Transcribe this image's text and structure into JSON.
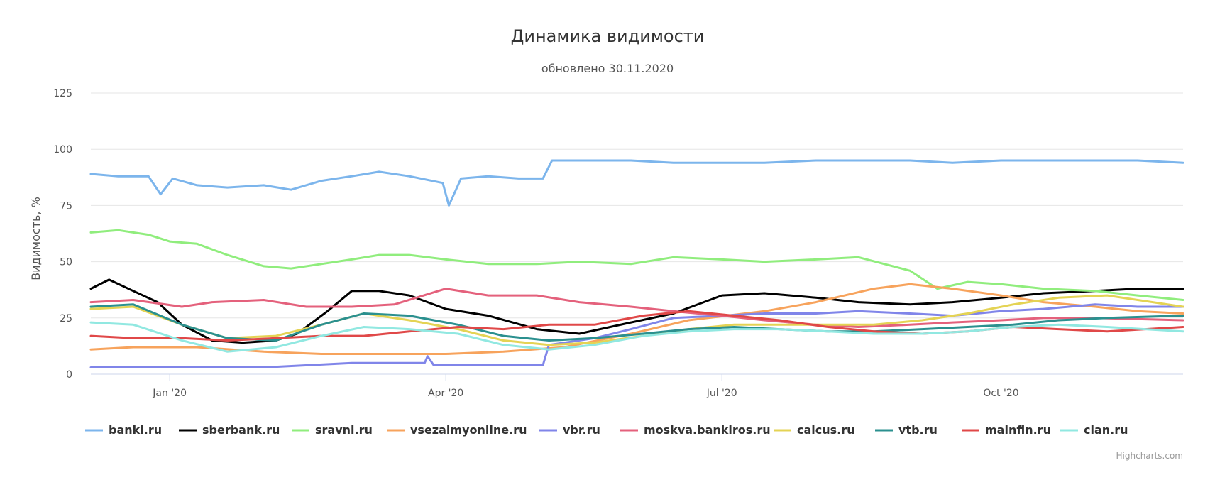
{
  "chart_data": {
    "type": "line",
    "title": "Динамика видимости",
    "subtitle": "обновлено 30.11.2020",
    "ylabel": "Видимость, %",
    "xlabel": "",
    "ylim": [
      0,
      125
    ],
    "y_ticks": [
      0,
      25,
      50,
      75,
      100,
      125
    ],
    "x_range": [
      "2019-12-06",
      "2020-11-30"
    ],
    "x_ticks": [
      {
        "date": "2020-01-01",
        "label": "Jan '20"
      },
      {
        "date": "2020-04-01",
        "label": "Apr '20"
      },
      {
        "date": "2020-07-01",
        "label": "Jul '20"
      },
      {
        "date": "2020-10-01",
        "label": "Oct '20"
      }
    ],
    "legend_position": "bottom",
    "credits": "Highcharts.com",
    "grid": true,
    "series": [
      {
        "name": "banki.ru",
        "color": "#7cb5ec",
        "points": [
          [
            "2019-12-06",
            89
          ],
          [
            "2019-12-15",
            88
          ],
          [
            "2019-12-25",
            88
          ],
          [
            "2019-12-29",
            80
          ],
          [
            "2020-01-02",
            87
          ],
          [
            "2020-01-10",
            84
          ],
          [
            "2020-01-20",
            83
          ],
          [
            "2020-02-01",
            84
          ],
          [
            "2020-02-10",
            82
          ],
          [
            "2020-02-20",
            86
          ],
          [
            "2020-03-01",
            88
          ],
          [
            "2020-03-10",
            90
          ],
          [
            "2020-03-20",
            88
          ],
          [
            "2020-03-31",
            85
          ],
          [
            "2020-04-02",
            75
          ],
          [
            "2020-04-06",
            87
          ],
          [
            "2020-04-15",
            88
          ],
          [
            "2020-04-25",
            87
          ],
          [
            "2020-05-03",
            87
          ],
          [
            "2020-05-06",
            95
          ],
          [
            "2020-05-20",
            95
          ],
          [
            "2020-06-01",
            95
          ],
          [
            "2020-06-15",
            94
          ],
          [
            "2020-07-01",
            94
          ],
          [
            "2020-07-15",
            94
          ],
          [
            "2020-08-01",
            95
          ],
          [
            "2020-08-15",
            95
          ],
          [
            "2020-09-01",
            95
          ],
          [
            "2020-09-15",
            94
          ],
          [
            "2020-10-01",
            95
          ],
          [
            "2020-10-15",
            95
          ],
          [
            "2020-11-01",
            95
          ],
          [
            "2020-11-15",
            95
          ],
          [
            "2020-11-30",
            94
          ]
        ]
      },
      {
        "name": "sberbank.ru",
        "color": "#000000",
        "points": [
          [
            "2019-12-06",
            38
          ],
          [
            "2019-12-12",
            42
          ],
          [
            "2019-12-20",
            37
          ],
          [
            "2019-12-28",
            32
          ],
          [
            "2020-01-05",
            22
          ],
          [
            "2020-01-15",
            15
          ],
          [
            "2020-01-25",
            14
          ],
          [
            "2020-02-05",
            15
          ],
          [
            "2020-02-12",
            18
          ],
          [
            "2020-02-22",
            28
          ],
          [
            "2020-03-01",
            37
          ],
          [
            "2020-03-10",
            37
          ],
          [
            "2020-03-20",
            35
          ],
          [
            "2020-04-01",
            29
          ],
          [
            "2020-04-15",
            26
          ],
          [
            "2020-05-01",
            20
          ],
          [
            "2020-05-15",
            18
          ],
          [
            "2020-06-01",
            23
          ],
          [
            "2020-06-15",
            27
          ],
          [
            "2020-07-01",
            35
          ],
          [
            "2020-07-15",
            36
          ],
          [
            "2020-08-01",
            34
          ],
          [
            "2020-08-15",
            32
          ],
          [
            "2020-09-01",
            31
          ],
          [
            "2020-09-15",
            32
          ],
          [
            "2020-10-01",
            34
          ],
          [
            "2020-10-15",
            36
          ],
          [
            "2020-11-01",
            37
          ],
          [
            "2020-11-15",
            38
          ],
          [
            "2020-11-30",
            38
          ]
        ]
      },
      {
        "name": "sravni.ru",
        "color": "#90ed7d",
        "points": [
          [
            "2019-12-06",
            63
          ],
          [
            "2019-12-15",
            64
          ],
          [
            "2019-12-25",
            62
          ],
          [
            "2020-01-01",
            59
          ],
          [
            "2020-01-10",
            58
          ],
          [
            "2020-01-20",
            53
          ],
          [
            "2020-02-01",
            48
          ],
          [
            "2020-02-10",
            47
          ],
          [
            "2020-02-20",
            49
          ],
          [
            "2020-03-01",
            51
          ],
          [
            "2020-03-10",
            53
          ],
          [
            "2020-03-20",
            53
          ],
          [
            "2020-04-01",
            51
          ],
          [
            "2020-04-15",
            49
          ],
          [
            "2020-05-01",
            49
          ],
          [
            "2020-05-15",
            50
          ],
          [
            "2020-06-01",
            49
          ],
          [
            "2020-06-15",
            52
          ],
          [
            "2020-07-01",
            51
          ],
          [
            "2020-07-15",
            50
          ],
          [
            "2020-08-01",
            51
          ],
          [
            "2020-08-15",
            52
          ],
          [
            "2020-09-01",
            46
          ],
          [
            "2020-09-10",
            38
          ],
          [
            "2020-09-20",
            41
          ],
          [
            "2020-10-01",
            40
          ],
          [
            "2020-10-15",
            38
          ],
          [
            "2020-11-01",
            37
          ],
          [
            "2020-11-15",
            35
          ],
          [
            "2020-11-30",
            33
          ]
        ]
      },
      {
        "name": "vsezaimyonline.ru",
        "color": "#f7a35c",
        "points": [
          [
            "2019-12-06",
            11
          ],
          [
            "2019-12-20",
            12
          ],
          [
            "2020-01-10",
            12
          ],
          [
            "2020-02-01",
            10
          ],
          [
            "2020-02-20",
            9
          ],
          [
            "2020-03-15",
            9
          ],
          [
            "2020-04-01",
            9
          ],
          [
            "2020-04-20",
            10
          ],
          [
            "2020-05-10",
            12
          ],
          [
            "2020-06-01",
            18
          ],
          [
            "2020-06-20",
            24
          ],
          [
            "2020-07-15",
            28
          ],
          [
            "2020-08-01",
            32
          ],
          [
            "2020-08-20",
            38
          ],
          [
            "2020-09-01",
            40
          ],
          [
            "2020-09-15",
            38
          ],
          [
            "2020-10-01",
            35
          ],
          [
            "2020-10-15",
            32
          ],
          [
            "2020-11-01",
            30
          ],
          [
            "2020-11-15",
            28
          ],
          [
            "2020-11-30",
            27
          ]
        ]
      },
      {
        "name": "vbr.ru",
        "color": "#8085e9",
        "points": [
          [
            "2019-12-06",
            3
          ],
          [
            "2020-01-01",
            3
          ],
          [
            "2020-02-01",
            3
          ],
          [
            "2020-03-01",
            5
          ],
          [
            "2020-03-25",
            5
          ],
          [
            "2020-03-26",
            8
          ],
          [
            "2020-03-28",
            4
          ],
          [
            "2020-04-20",
            4
          ],
          [
            "2020-05-03",
            4
          ],
          [
            "2020-05-05",
            13
          ],
          [
            "2020-05-20",
            16
          ],
          [
            "2020-06-01",
            20
          ],
          [
            "2020-06-15",
            25
          ],
          [
            "2020-07-01",
            26
          ],
          [
            "2020-07-15",
            27
          ],
          [
            "2020-08-01",
            27
          ],
          [
            "2020-08-15",
            28
          ],
          [
            "2020-09-01",
            27
          ],
          [
            "2020-09-15",
            26
          ],
          [
            "2020-10-01",
            28
          ],
          [
            "2020-10-15",
            29
          ],
          [
            "2020-11-01",
            31
          ],
          [
            "2020-11-15",
            30
          ],
          [
            "2020-11-30",
            30
          ]
        ]
      },
      {
        "name": "moskva.bankiros.ru",
        "color": "#e4617c",
        "points": [
          [
            "2019-12-06",
            32
          ],
          [
            "2019-12-20",
            33
          ],
          [
            "2020-01-05",
            30
          ],
          [
            "2020-01-15",
            32
          ],
          [
            "2020-02-01",
            33
          ],
          [
            "2020-02-15",
            30
          ],
          [
            "2020-03-01",
            30
          ],
          [
            "2020-03-15",
            31
          ],
          [
            "2020-04-01",
            38
          ],
          [
            "2020-04-15",
            35
          ],
          [
            "2020-05-01",
            35
          ],
          [
            "2020-05-15",
            32
          ],
          [
            "2020-06-01",
            30
          ],
          [
            "2020-06-15",
            28
          ],
          [
            "2020-07-01",
            26
          ],
          [
            "2020-07-15",
            24
          ],
          [
            "2020-08-01",
            22
          ],
          [
            "2020-08-15",
            21
          ],
          [
            "2020-09-01",
            22
          ],
          [
            "2020-09-15",
            23
          ],
          [
            "2020-10-01",
            24
          ],
          [
            "2020-10-15",
            25
          ],
          [
            "2020-11-01",
            25
          ],
          [
            "2020-11-30",
            24
          ]
        ]
      },
      {
        "name": "calcus.ru",
        "color": "#e4d354",
        "points": [
          [
            "2019-12-06",
            29
          ],
          [
            "2019-12-20",
            30
          ],
          [
            "2020-01-05",
            22
          ],
          [
            "2020-01-20",
            16
          ],
          [
            "2020-02-05",
            17
          ],
          [
            "2020-02-20",
            22
          ],
          [
            "2020-03-05",
            27
          ],
          [
            "2020-03-20",
            24
          ],
          [
            "2020-04-05",
            20
          ],
          [
            "2020-04-20",
            15
          ],
          [
            "2020-05-05",
            13
          ],
          [
            "2020-05-20",
            14
          ],
          [
            "2020-06-05",
            17
          ],
          [
            "2020-06-20",
            20
          ],
          [
            "2020-07-05",
            22
          ],
          [
            "2020-07-20",
            22
          ],
          [
            "2020-08-05",
            22
          ],
          [
            "2020-08-20",
            22
          ],
          [
            "2020-09-05",
            24
          ],
          [
            "2020-09-20",
            27
          ],
          [
            "2020-10-05",
            31
          ],
          [
            "2020-10-20",
            34
          ],
          [
            "2020-11-05",
            35
          ],
          [
            "2020-11-30",
            30
          ]
        ]
      },
      {
        "name": "vtb.ru",
        "color": "#2b908f",
        "points": [
          [
            "2019-12-06",
            30
          ],
          [
            "2019-12-20",
            31
          ],
          [
            "2020-01-05",
            22
          ],
          [
            "2020-01-20",
            16
          ],
          [
            "2020-02-05",
            15
          ],
          [
            "2020-02-20",
            22
          ],
          [
            "2020-03-05",
            27
          ],
          [
            "2020-03-20",
            26
          ],
          [
            "2020-04-05",
            22
          ],
          [
            "2020-04-20",
            17
          ],
          [
            "2020-05-05",
            15
          ],
          [
            "2020-05-20",
            16
          ],
          [
            "2020-06-05",
            18
          ],
          [
            "2020-06-20",
            20
          ],
          [
            "2020-07-05",
            21
          ],
          [
            "2020-07-20",
            20
          ],
          [
            "2020-08-05",
            19
          ],
          [
            "2020-08-20",
            19
          ],
          [
            "2020-09-05",
            20
          ],
          [
            "2020-09-20",
            21
          ],
          [
            "2020-10-05",
            22
          ],
          [
            "2020-10-20",
            24
          ],
          [
            "2020-11-05",
            25
          ],
          [
            "2020-11-30",
            26
          ]
        ]
      },
      {
        "name": "mainfin.ru",
        "color": "#e04848",
        "points": [
          [
            "2019-12-06",
            17
          ],
          [
            "2019-12-20",
            16
          ],
          [
            "2020-01-05",
            16
          ],
          [
            "2020-01-20",
            15
          ],
          [
            "2020-02-05",
            16
          ],
          [
            "2020-02-20",
            17
          ],
          [
            "2020-03-05",
            17
          ],
          [
            "2020-03-20",
            19
          ],
          [
            "2020-04-05",
            21
          ],
          [
            "2020-04-20",
            20
          ],
          [
            "2020-05-05",
            22
          ],
          [
            "2020-05-20",
            22
          ],
          [
            "2020-06-05",
            26
          ],
          [
            "2020-06-20",
            28
          ],
          [
            "2020-07-05",
            26
          ],
          [
            "2020-07-20",
            24
          ],
          [
            "2020-08-05",
            21
          ],
          [
            "2020-08-20",
            19
          ],
          [
            "2020-09-05",
            18
          ],
          [
            "2020-09-20",
            19
          ],
          [
            "2020-10-05",
            21
          ],
          [
            "2020-10-20",
            20
          ],
          [
            "2020-11-05",
            19
          ],
          [
            "2020-11-30",
            21
          ]
        ]
      },
      {
        "name": "cian.ru",
        "color": "#91e8e1",
        "points": [
          [
            "2019-12-06",
            23
          ],
          [
            "2019-12-20",
            22
          ],
          [
            "2020-01-05",
            15
          ],
          [
            "2020-01-20",
            10
          ],
          [
            "2020-02-05",
            12
          ],
          [
            "2020-02-20",
            17
          ],
          [
            "2020-03-05",
            21
          ],
          [
            "2020-03-20",
            20
          ],
          [
            "2020-04-05",
            18
          ],
          [
            "2020-04-20",
            13
          ],
          [
            "2020-05-05",
            11
          ],
          [
            "2020-05-20",
            13
          ],
          [
            "2020-06-05",
            17
          ],
          [
            "2020-06-20",
            19
          ],
          [
            "2020-07-05",
            20
          ],
          [
            "2020-07-20",
            20
          ],
          [
            "2020-08-05",
            19
          ],
          [
            "2020-08-20",
            18
          ],
          [
            "2020-09-05",
            18
          ],
          [
            "2020-09-20",
            19
          ],
          [
            "2020-10-05",
            21
          ],
          [
            "2020-10-20",
            22
          ],
          [
            "2020-11-05",
            21
          ],
          [
            "2020-11-30",
            19
          ]
        ]
      }
    ]
  }
}
